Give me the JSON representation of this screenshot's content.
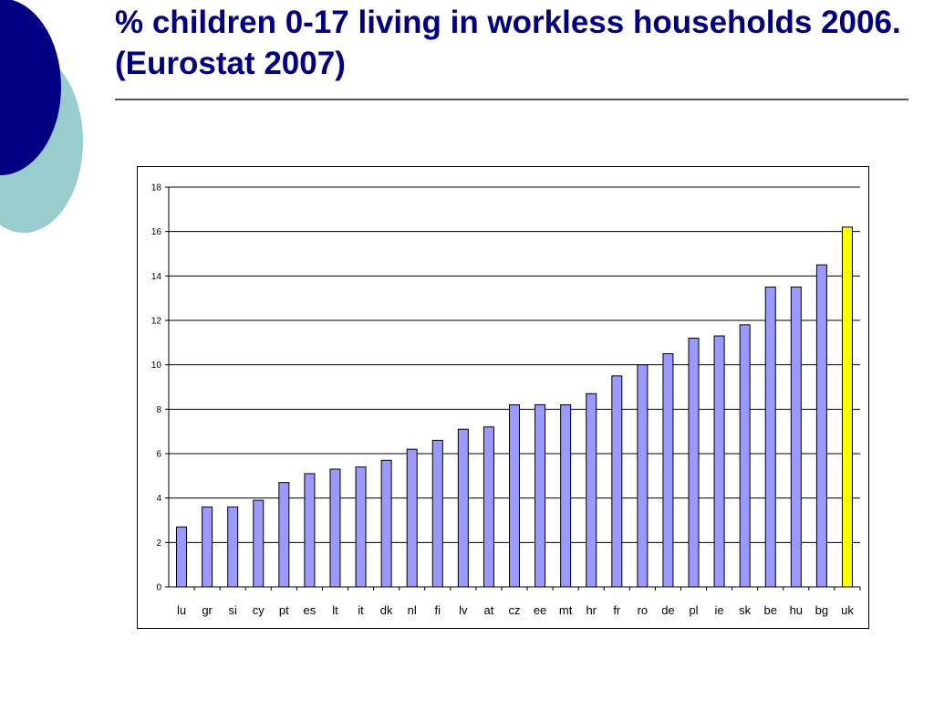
{
  "slide": {
    "title": "% children 0-17 living in workless households 2006. (Eurostat 2007)"
  },
  "colors": {
    "title": "#000080",
    "deco_dark": "#000080",
    "deco_light": "#99CCCC",
    "bar_default": "#9999FF",
    "bar_highlight": "#FFFF00",
    "bar_stroke": "#000000"
  },
  "chart_data": {
    "type": "bar",
    "categories": [
      "lu",
      "gr",
      "si",
      "cy",
      "pt",
      "es",
      "lt",
      "it",
      "dk",
      "nl",
      "fi",
      "lv",
      "at",
      "cz",
      "ee",
      "mt",
      "hr",
      "fr",
      "ro",
      "de",
      "pl",
      "ie",
      "sk",
      "be",
      "hu",
      "bg",
      "uk"
    ],
    "values": [
      2.7,
      3.6,
      3.6,
      3.9,
      4.7,
      5.1,
      5.3,
      5.4,
      5.7,
      6.2,
      6.6,
      7.1,
      7.2,
      8.2,
      8.2,
      8.2,
      8.7,
      9.5,
      10.0,
      10.5,
      11.2,
      11.3,
      11.8,
      13.5,
      13.5,
      14.5,
      16.2
    ],
    "highlight": [
      "uk"
    ],
    "ylim": [
      0,
      18
    ],
    "yticks": [
      0,
      2,
      4,
      6,
      8,
      10,
      12,
      14,
      16,
      18
    ],
    "grid": true,
    "title": "",
    "xlabel": "",
    "ylabel": ""
  }
}
